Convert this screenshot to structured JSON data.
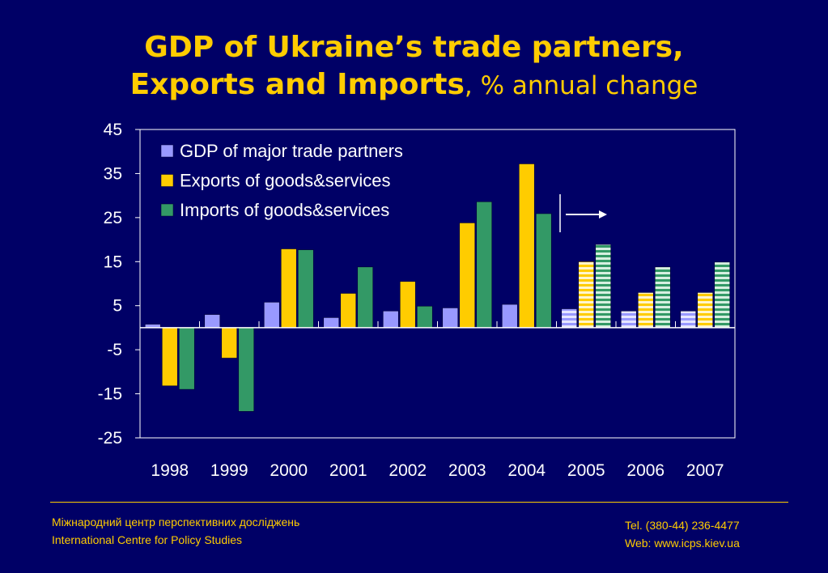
{
  "title_line1": "GDP of Ukraine’s trade partners,",
  "title_line2_bold": "Exports and Imports",
  "title_line2_rest": ", % annual change",
  "colors": {
    "background": "#000066",
    "title": "#FFCC00",
    "gdp": "#9999FF",
    "exports": "#FFCC00",
    "imports": "#339966"
  },
  "chart_data": {
    "type": "bar",
    "categories": [
      "1998",
      "1999",
      "2000",
      "2001",
      "2002",
      "2003",
      "2004",
      "2005",
      "2006",
      "2007"
    ],
    "series": [
      {
        "name": "GDP of major trade partners",
        "values": [
          0.8,
          3.0,
          5.8,
          2.3,
          3.8,
          4.5,
          5.3,
          4.3,
          3.8,
          3.8
        ]
      },
      {
        "name": "Exports of goods&services",
        "values": [
          -13.2,
          -6.9,
          17.9,
          7.8,
          10.5,
          23.8,
          37.2,
          15.0,
          8.0,
          8.0
        ]
      },
      {
        "name": "Imports of goods&services",
        "values": [
          -14.0,
          -19.0,
          17.7,
          13.8,
          4.9,
          28.6,
          25.9,
          18.9,
          13.8,
          14.9
        ]
      }
    ],
    "forecast_from": "2005",
    "ylim": [
      -25,
      45
    ],
    "yticks": [
      45,
      35,
      25,
      15,
      5,
      -5,
      -15,
      -25
    ],
    "legend_position": "top-left"
  },
  "footer": {
    "left_line1": "Міжнародний центр перспективних досліджень",
    "left_line2": "International Centre for Policy Studies",
    "right_line1": "Tel. (380-44) 236-4477",
    "right_line2": "Web: www.icps.kiev.ua"
  }
}
